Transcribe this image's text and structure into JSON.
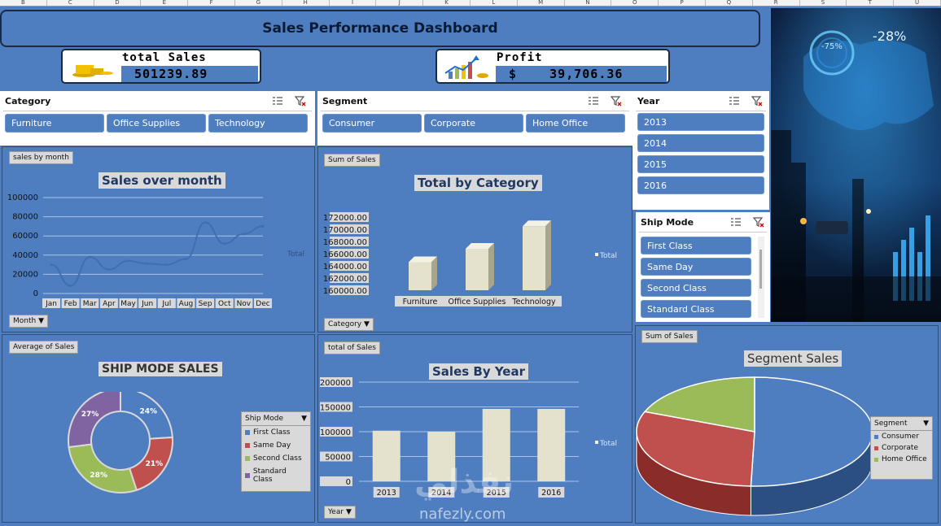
{
  "columns": [
    "B",
    "C",
    "D",
    "E",
    "F",
    "G",
    "H",
    "I",
    "J",
    "K",
    "L",
    "M",
    "N",
    "O",
    "P",
    "Q",
    "R",
    "S",
    "T",
    "U"
  ],
  "title": "Sales Performance Dashboard",
  "kpis": {
    "sales": {
      "label": "total  Sales",
      "value": "501239.89"
    },
    "profit": {
      "label": "Profit",
      "value": "$    39,706.36"
    }
  },
  "slicers": {
    "category": {
      "title": "Category",
      "items": [
        "Furniture",
        "Office Supplies",
        "Technology"
      ]
    },
    "segment": {
      "title": "Segment",
      "items": [
        "Consumer",
        "Corporate",
        "Home Office"
      ]
    },
    "year": {
      "title": "Year",
      "items": [
        "2013",
        "2014",
        "2015",
        "2016"
      ]
    },
    "ship_mode": {
      "title": "Ship Mode",
      "items": [
        "First Class",
        "Same Day",
        "Second Class",
        "Standard Class"
      ]
    }
  },
  "icons": {
    "multiselect": "multiselect-icon",
    "clear_filter": "clear-filter-icon",
    "dropdown": "dropdown-arrow-icon"
  },
  "colors": {
    "background": "#4f7ec0",
    "bar": "#e4e1cc",
    "first_class": "#4f7ec0",
    "same_day": "#c0504d",
    "second_class": "#9bbb59",
    "standard_class": "#8064a2"
  },
  "photo": {
    "percent_1": "-28%",
    "percent_2": "-75%"
  },
  "watermark": {
    "logo": "نفذلي",
    "url": "nafezly.com"
  },
  "chart_data": [
    {
      "type": "line",
      "field_button": "sales by month",
      "title": "Sales over month",
      "axis_button": "Month",
      "legend": "Total",
      "categories": [
        "Jan",
        "Feb",
        "Mar",
        "Apr",
        "May",
        "Jun",
        "Jul",
        "Aug",
        "Sep",
        "Oct",
        "Nov",
        "Dec"
      ],
      "values": [
        30000,
        8000,
        38000,
        25000,
        34000,
        31000,
        30000,
        36000,
        74000,
        52000,
        62000,
        70000
      ],
      "ylim": [
        0,
        100000
      ],
      "yticks": [
        "0",
        "20000",
        "40000",
        "60000",
        "80000",
        "100000"
      ],
      "grid": true
    },
    {
      "type": "bar",
      "field_button": "Sum of Sales",
      "title": "Total by Category",
      "axis_button": "Category",
      "legend": "Total",
      "categories": [
        "Furniture",
        "Office Supplies",
        "Technology"
      ],
      "values": [
        164600,
        166800,
        170500
      ],
      "ylim": [
        160000,
        172000
      ],
      "yticks": [
        "160000.00",
        "162000.00",
        "164000.00",
        "166000.00",
        "168000.00",
        "170000.00",
        "172000.00"
      ]
    },
    {
      "type": "pie",
      "field_button": "Average of Sales",
      "title": "SHIP MODE SALES",
      "legend_title": "Ship Mode",
      "categories": [
        "First Class",
        "Same Day",
        "Second Class",
        "Standard Class"
      ],
      "values": [
        24,
        21,
        28,
        27
      ],
      "labels": [
        "24%",
        "21%",
        "28%",
        "27%"
      ]
    },
    {
      "type": "bar",
      "field_button": "total of Sales",
      "title": "Sales By Year",
      "axis_button": "Year",
      "legend": "Total",
      "categories": [
        "2013",
        "2014",
        "2015",
        "2016"
      ],
      "values": [
        102000,
        100000,
        146000,
        146000
      ],
      "ylim": [
        0,
        200000
      ],
      "yticks": [
        "0",
        "50000",
        "100000",
        "150000",
        "200000"
      ]
    },
    {
      "type": "pie",
      "field_button": "Sum of Sales",
      "title": "Segment Sales",
      "legend_title": "Segment",
      "categories": [
        "Consumer",
        "Corporate",
        "Home Office"
      ],
      "values": [
        50.5,
        30.5,
        19
      ]
    }
  ]
}
